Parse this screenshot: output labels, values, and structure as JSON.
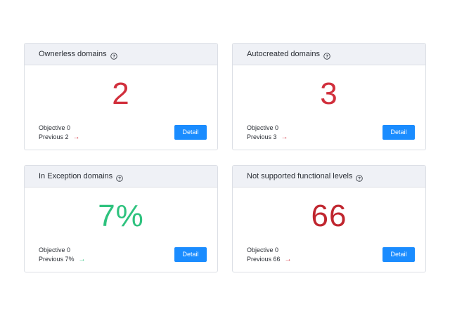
{
  "cards": [
    {
      "title": "Ownerless domains",
      "value": "2",
      "value_color": "#d12f3c",
      "objective": "Objective 0",
      "previous": "Previous 2",
      "trend_icon": "arrow-right-icon",
      "trend_color": "#d12f3c",
      "button_label": "Detail"
    },
    {
      "title": "Autocreated domains",
      "value": "3",
      "value_color": "#d12f3c",
      "objective": "Objective 0",
      "previous": "Previous 3",
      "trend_icon": "arrow-right-icon",
      "trend_color": "#d12f3c",
      "button_label": "Detail"
    },
    {
      "title": "In Exception domains",
      "value": "7%",
      "value_color": "#2ec27e",
      "objective": "Objective 0",
      "previous": "Previous 7%",
      "trend_icon": "arrow-right-icon",
      "trend_color": "#2ec27e",
      "button_label": "Detail"
    },
    {
      "title": "Not supported functional levels",
      "value": "66",
      "value_color": "#c0262f",
      "objective": "Objective 0",
      "previous": "Previous 66",
      "trend_icon": "arrow-right-icon",
      "trend_color": "#d12f3c",
      "button_label": "Detail"
    }
  ],
  "colors": {
    "accent_button": "#1a8cff",
    "header_bg": "#eff1f6",
    "border": "#dcdfe5"
  }
}
